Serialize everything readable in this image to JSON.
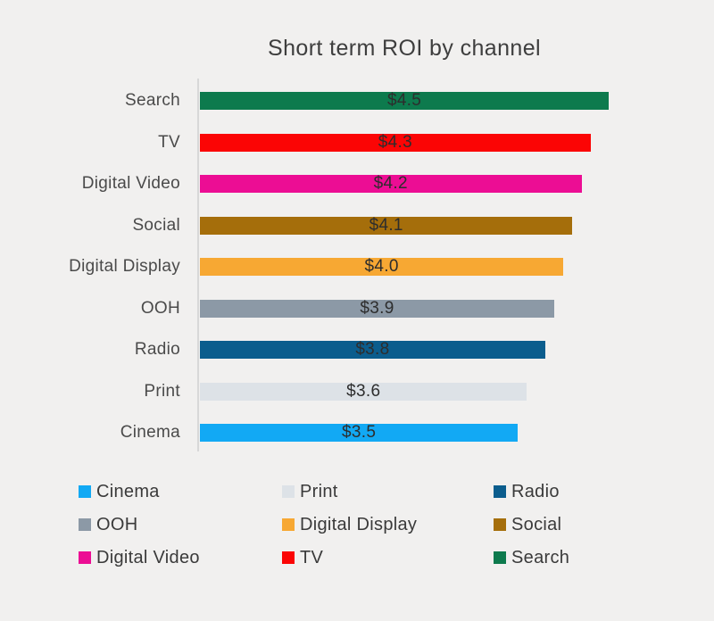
{
  "chart_data": {
    "type": "bar",
    "orientation": "horizontal",
    "title": "Short term ROI by channel",
    "xlabel": "",
    "ylabel": "",
    "xlim": [
      0,
      4.7
    ],
    "grid": false,
    "legend_position": "bottom",
    "categories": [
      "Search",
      "TV",
      "Digital Video",
      "Social",
      "Digital Display",
      "OOH",
      "Radio",
      "Print",
      "Cinema"
    ],
    "values": [
      4.5,
      4.3,
      4.2,
      4.1,
      4.0,
      3.9,
      3.8,
      3.6,
      3.5
    ],
    "value_labels": [
      "$4.5",
      "$4.3",
      "$4.2",
      "$4.1",
      "$4.0",
      "$3.9",
      "$3.8",
      "$3.6",
      "$3.5"
    ],
    "bar_colors": [
      "#0d7a4d",
      "#fb0505",
      "#ec0d94",
      "#a56e0b",
      "#f7a833",
      "#8c99a6",
      "#0b5d8d",
      "#dde2e7",
      "#12a9f4"
    ],
    "legend": [
      {
        "label": "Cinema",
        "color": "#12a9f4"
      },
      {
        "label": "Print",
        "color": "#dde2e7"
      },
      {
        "label": "Radio",
        "color": "#0b5d8d"
      },
      {
        "label": "OOH",
        "color": "#8c99a6"
      },
      {
        "label": "Digital Display",
        "color": "#f7a833"
      },
      {
        "label": "Social",
        "color": "#a56e0b"
      },
      {
        "label": "Digital Video",
        "color": "#ec0d94"
      },
      {
        "label": "TV",
        "color": "#fb0505"
      },
      {
        "label": "Search",
        "color": "#0d7a4d"
      }
    ]
  },
  "colors": {
    "background": "#f1f0ef",
    "axis_line": "#d8d8d8",
    "title_text": "#3e3e3e",
    "label_text": "#4a4a4a",
    "value_text": "#2d2d2d"
  }
}
